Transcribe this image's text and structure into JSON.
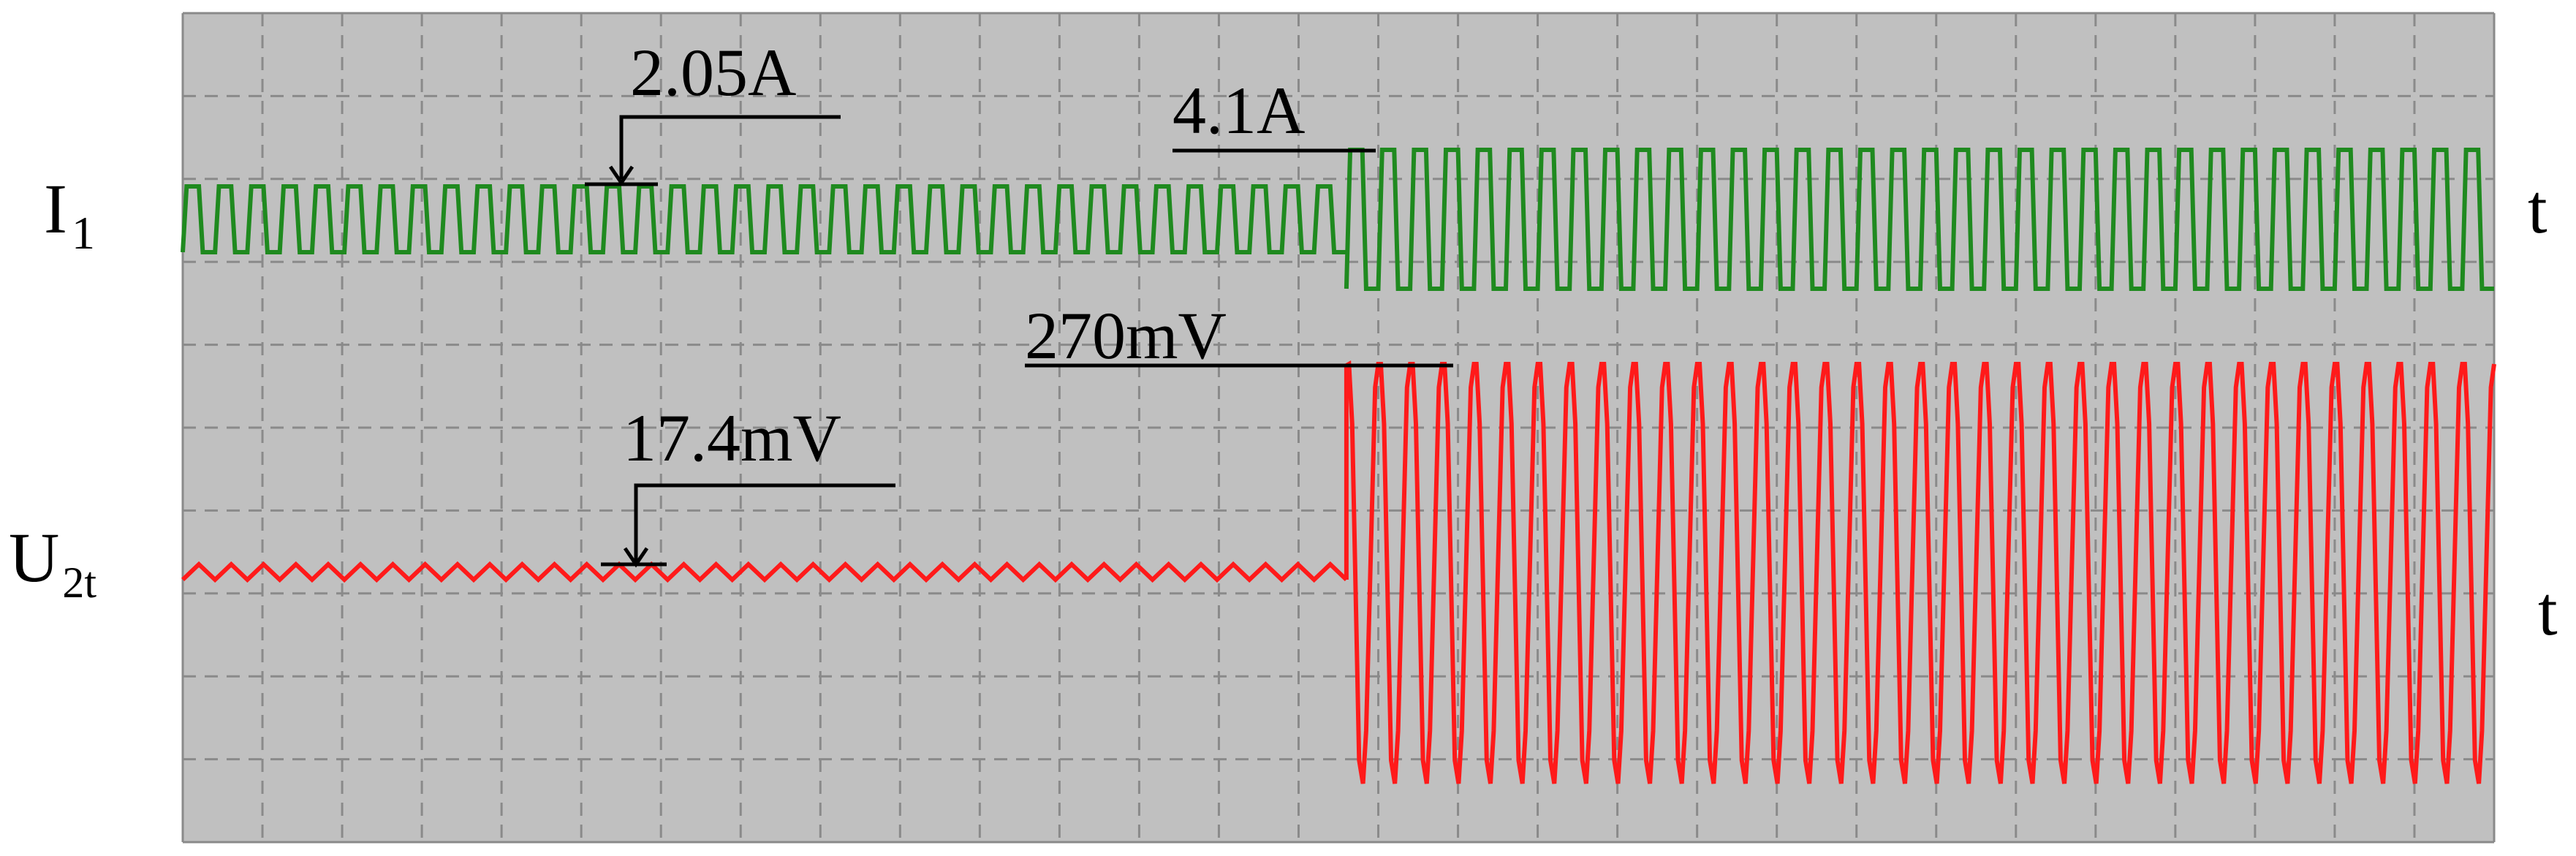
{
  "colors": {
    "screen_bg": "#c0c0c0",
    "grid": "#8a8a8a",
    "i1_trace": "#1f8a1f",
    "u2t_trace": "#ff1a1a",
    "annotation": "#000000"
  },
  "chart_data": {
    "type": "line",
    "grid": true,
    "grid_style": "dashed",
    "grid_divisions": {
      "x": 29,
      "y": 10
    },
    "series": [
      {
        "name": "I1",
        "label_main": "I",
        "label_sub": "1",
        "axis_label": "t",
        "color": "#1f8a1f",
        "segments": [
          {
            "x_range_div": [
              0,
              14.6
            ],
            "cycles": 36,
            "annotation_value": "2.05A"
          },
          {
            "x_range_div": [
              14.6,
              29
            ],
            "cycles": 36,
            "annotation_value": "4.1A"
          }
        ]
      },
      {
        "name": "U2t",
        "label_main": "U",
        "label_sub": "2t",
        "axis_label": "t",
        "color": "#ff1a1a",
        "segments": [
          {
            "x_range_div": [
              0,
              14.6
            ],
            "cycles": 36,
            "annotation_value": "17.4mV"
          },
          {
            "x_range_div": [
              14.6,
              29
            ],
            "cycles": 36,
            "annotation_value": "270mV"
          }
        ]
      }
    ],
    "annotations": [
      "2.05A",
      "4.1A",
      "270mV",
      "17.4mV"
    ]
  }
}
